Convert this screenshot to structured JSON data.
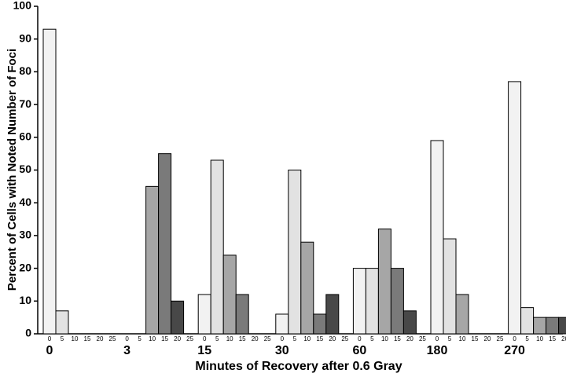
{
  "chart_data": {
    "type": "bar",
    "x_label": "Minutes of Recovery after 0.6 Gray",
    "y_label": "Percent of Cells with Noted Number of Foci",
    "categories": [
      "0",
      "3",
      "15",
      "30",
      "60",
      "180",
      "270"
    ],
    "series": [
      {
        "name": "0",
        "color": "#f2f2f2",
        "values": [
          93,
          0,
          12,
          6,
          20,
          59,
          77
        ]
      },
      {
        "name": "5",
        "color": "#e2e2e2",
        "values": [
          7,
          0,
          53,
          50,
          20,
          29,
          8
        ]
      },
      {
        "name": "10",
        "color": "#a6a6a6",
        "values": [
          0,
          45,
          24,
          28,
          32,
          12,
          5
        ]
      },
      {
        "name": "15",
        "color": "#7a7a7a",
        "values": [
          0,
          55,
          12,
          6,
          20,
          0,
          5
        ]
      },
      {
        "name": "20",
        "color": "#484848",
        "values": [
          0,
          10,
          0,
          12,
          7,
          0,
          5
        ]
      },
      {
        "name": "25",
        "color": "#1a1a1a",
        "values": [
          0,
          0,
          0,
          0,
          0,
          0,
          0
        ]
      }
    ],
    "ylim": [
      0,
      100
    ],
    "yticks": [
      0,
      10,
      20,
      30,
      40,
      50,
      60,
      70,
      80,
      90,
      100
    ]
  }
}
